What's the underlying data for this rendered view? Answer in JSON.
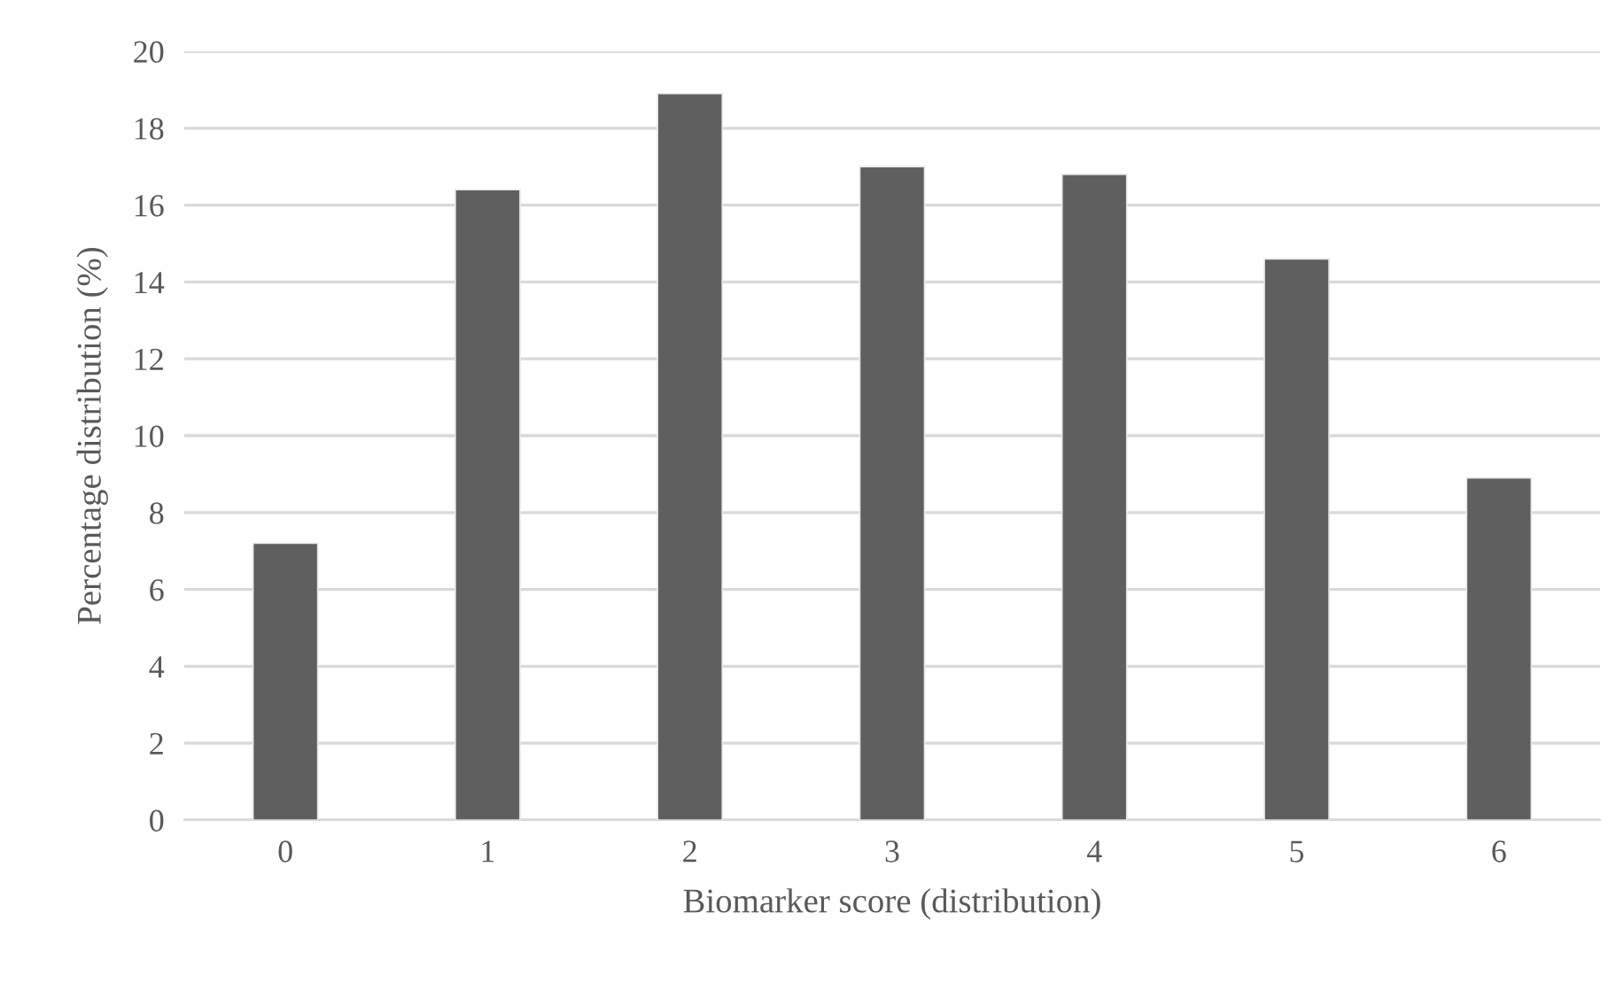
{
  "chart_data": {
    "type": "bar",
    "xlabel": "Biomarker score (distribution)",
    "ylabel": "Percentage distribution (%)",
    "categories": [
      "0",
      "1",
      "2",
      "3",
      "4",
      "5",
      "6"
    ],
    "values": [
      7.2,
      16.4,
      18.9,
      17.0,
      16.8,
      14.6,
      8.9
    ],
    "color": "#5f5f5f",
    "ylim": [
      0,
      20
    ],
    "yticks": [
      0,
      2,
      4,
      6,
      8,
      10,
      12,
      14,
      16,
      18,
      20
    ],
    "grid": "y"
  }
}
